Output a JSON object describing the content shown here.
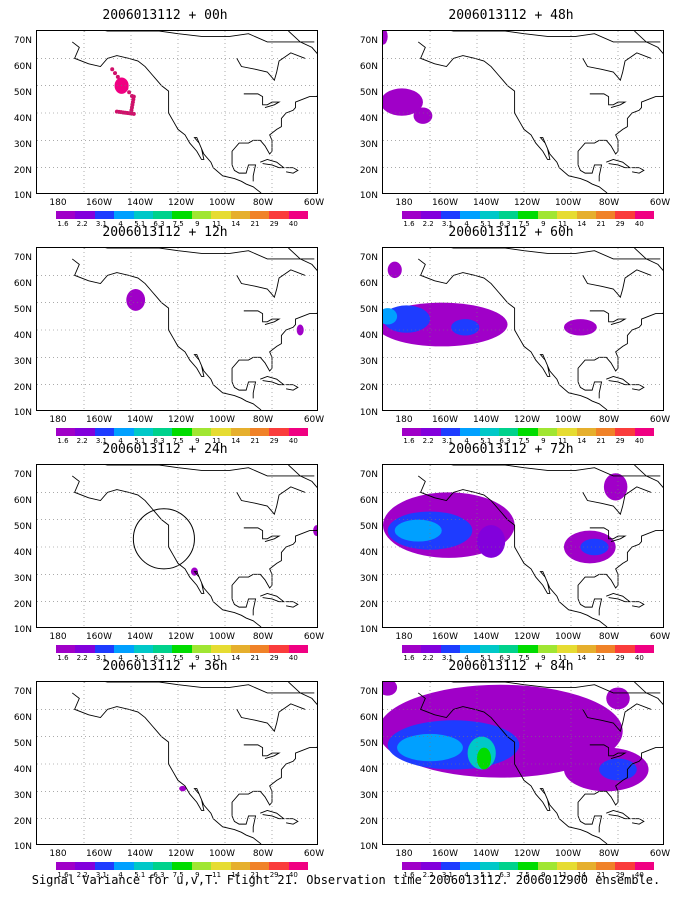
{
  "panels": [
    {
      "title": "2006013112 + 00h"
    },
    {
      "title": "2006013112 + 48h"
    },
    {
      "title": "2006013112 + 12h"
    },
    {
      "title": "2006013112 + 60h"
    },
    {
      "title": "2006013112 + 24h"
    },
    {
      "title": "2006013112 + 72h"
    },
    {
      "title": "2006013112 + 36h"
    },
    {
      "title": "2006013112 + 84h"
    }
  ],
  "lat_labels": [
    "70N",
    "60N",
    "50N",
    "40N",
    "30N",
    "20N",
    "10N"
  ],
  "lon_labels": [
    "180",
    "160W",
    "140W",
    "120W",
    "100W",
    "80W",
    "60W"
  ],
  "colorbar": {
    "labels": [
      "1.6",
      "2.2",
      "3.1",
      "4",
      "5.1",
      "6.3",
      "7.5",
      "9",
      "11",
      "14",
      "21",
      "29",
      "40"
    ],
    "colors": [
      "#a000c8",
      "#8200dc",
      "#1e3cff",
      "#00a0ff",
      "#00c8c8",
      "#00d28c",
      "#00dc00",
      "#a0e632",
      "#e6dc32",
      "#e6af2d",
      "#f08228",
      "#fa3c3c",
      "#f00082"
    ]
  },
  "caption": "Signal Variance for u,v,T. Flight 21. Observation time 2006013112. 2006012900 ensemble."
}
